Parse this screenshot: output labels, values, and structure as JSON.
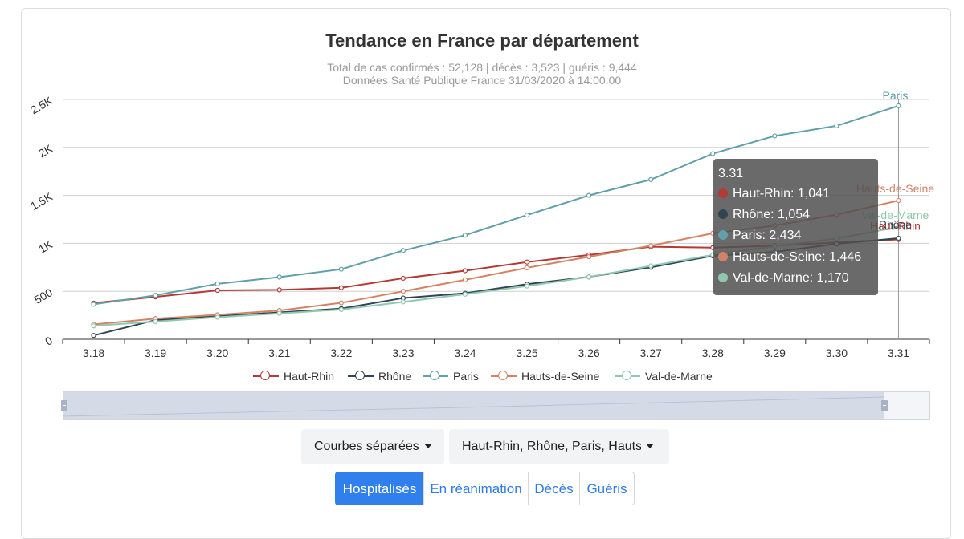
{
  "chart_data": {
    "type": "line",
    "title": "Tendance en France par département",
    "subtitle_1": "Total de cas confirmés : 52,128 | décès : 3,523 | guéris : 9,444",
    "subtitle_2": "Données Santé Publique France 31/03/2020 à 14:00:00",
    "categories": [
      "3.18",
      "3.19",
      "3.20",
      "3.21",
      "3.22",
      "3.23",
      "3.24",
      "3.25",
      "3.26",
      "3.27",
      "3.28",
      "3.29",
      "3.30",
      "3.31"
    ],
    "ylim": [
      0,
      2500
    ],
    "y_ticks": [
      0,
      500,
      1000,
      1500,
      2000,
      2500
    ],
    "y_tick_labels": [
      "0",
      "500",
      "1K",
      "1.5K",
      "2K",
      "2.5K"
    ],
    "series": [
      {
        "name": "Haut-Rhin",
        "color": "#b33a36",
        "values": [
          378,
          442,
          510,
          515,
          537,
          636,
          715,
          805,
          879,
          965,
          955,
          975,
          1010,
          1041
        ]
      },
      {
        "name": "Rhône",
        "color": "#2f4554",
        "values": [
          40,
          200,
          240,
          280,
          320,
          430,
          480,
          575,
          650,
          750,
          870,
          910,
          995,
          1054
        ]
      },
      {
        "name": "Paris",
        "color": "#61a0a8",
        "values": [
          365,
          458,
          578,
          648,
          730,
          925,
          1085,
          1295,
          1500,
          1665,
          1935,
          2120,
          2225,
          2434
        ]
      },
      {
        "name": "Hauts-de-Seine",
        "color": "#d48265",
        "values": [
          155,
          215,
          255,
          300,
          380,
          500,
          620,
          745,
          860,
          975,
          1105,
          1185,
          1300,
          1446
        ]
      },
      {
        "name": "Val-de-Marne",
        "color": "#91c7ae",
        "values": [
          140,
          185,
          230,
          270,
          310,
          390,
          470,
          555,
          650,
          765,
          880,
          970,
          1050,
          1170
        ]
      }
    ],
    "end_labels": [
      "Haut-Rhin",
      "Rhône",
      "Paris",
      "Hauts-de-Seine",
      "Val-de-Marne"
    ],
    "legend_position": "bottom"
  },
  "tooltip": {
    "date": "3.31",
    "rows": [
      {
        "label": "Haut-Rhin: 1,041",
        "color": "#b33a36"
      },
      {
        "label": "Rhône: 1,054",
        "color": "#2f4554"
      },
      {
        "label": "Paris: 2,434",
        "color": "#61a0a8"
      },
      {
        "label": "Hauts-de-Seine: 1,446",
        "color": "#d48265"
      },
      {
        "label": "Val-de-Marne: 1,170",
        "color": "#91c7ae"
      }
    ]
  },
  "controls": {
    "view_select": "Courbes séparées",
    "departments_select": "Haut-Rhin, Rhône, Paris, Hauts-de-Seine, Val-de-Marne"
  },
  "tabs": [
    {
      "label": "Hospitalisés",
      "active": true
    },
    {
      "label": "En réanimation",
      "active": false
    },
    {
      "label": "Décès",
      "active": false
    },
    {
      "label": "Guéris",
      "active": false
    }
  ]
}
